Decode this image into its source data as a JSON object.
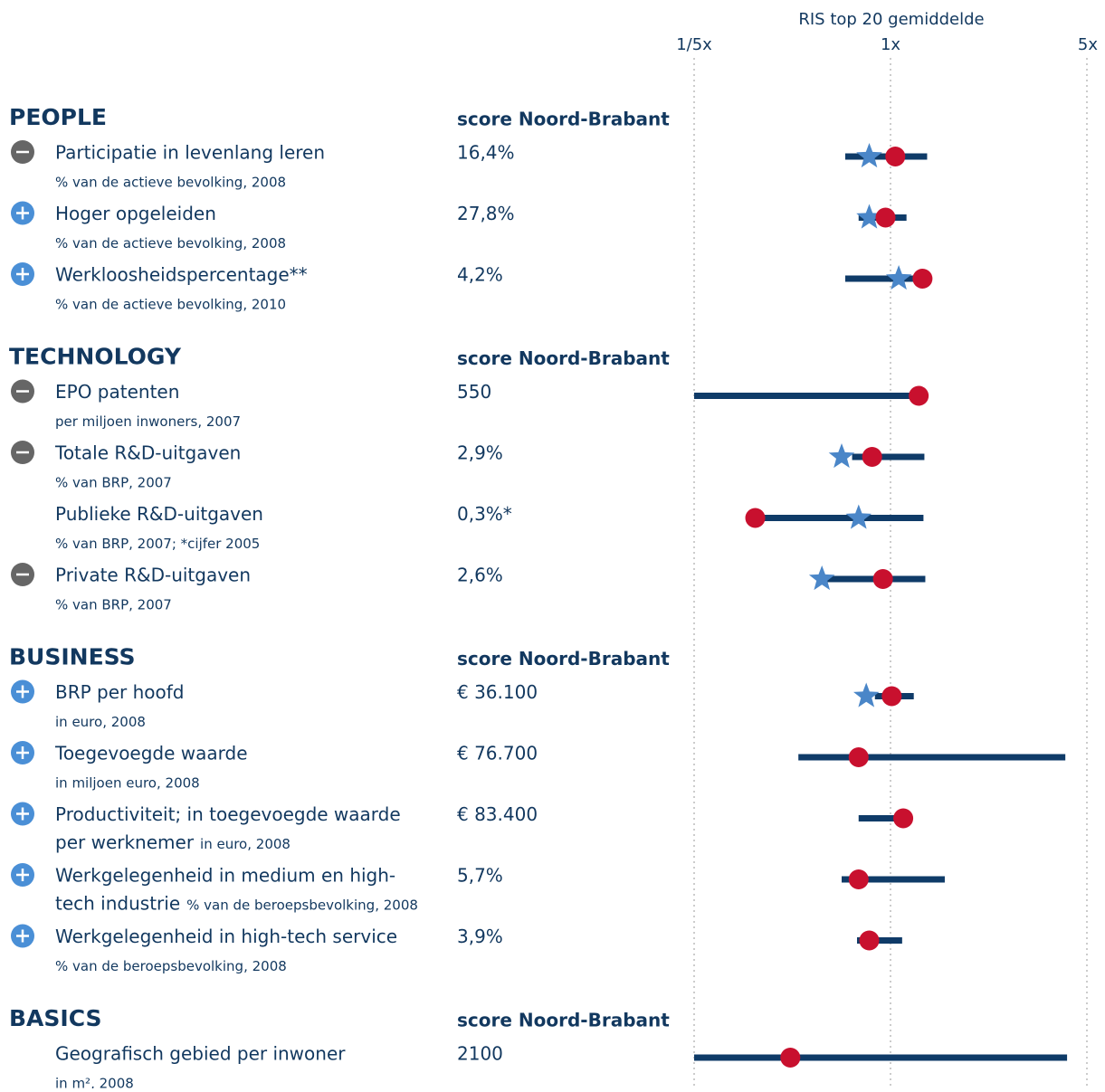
{
  "chart_data": {
    "type": "range-dot",
    "title": "RIS top 20 gemiddelde",
    "log": true,
    "xlim": [
      0.2,
      5
    ],
    "xticks": [
      {
        "value": 0.2,
        "label": "1/5x"
      },
      {
        "value": 1,
        "label": "1x"
      },
      {
        "value": 5,
        "label": "5x"
      }
    ],
    "colors": {
      "range": "#0f3b68",
      "noord_brabant": "#c8102e",
      "ris_top20": "#4a86c8",
      "plus": "#4a8fd6",
      "minus": "#666666"
    },
    "sections": [
      {
        "name": "PEOPLE",
        "score_header": "score Noord-Brabant",
        "rows": [
          {
            "label": [
              "Participatie in levenlang leren"
            ],
            "note": "% van de actieve bevolking, 2008",
            "score": "16,4%",
            "sign": "minus",
            "range": [
              0.69,
              1.35
            ],
            "ris_top20": 0.84,
            "noord_brabant": 1.04
          },
          {
            "label": [
              "Hoger opgeleiden"
            ],
            "note": "% van de actieve bevolking, 2008",
            "score": "27,8%",
            "sign": "plus",
            "range": [
              0.77,
              1.14
            ],
            "ris_top20": 0.84,
            "noord_brabant": 0.96
          },
          {
            "label": [
              "Werkloosheidspercentage**"
            ],
            "note": "% van de actieve bevolking, 2010",
            "score": "4,2%",
            "sign": "plus",
            "range": [
              0.69,
              1.3
            ],
            "ris_top20": 1.07,
            "noord_brabant": 1.3
          }
        ]
      },
      {
        "name": "TECHNOLOGY",
        "score_header": "score Noord-Brabant",
        "rows": [
          {
            "label": [
              "EPO patenten"
            ],
            "note": "per miljoen inwoners, 2007",
            "score": "550",
            "sign": "minus",
            "range": [
              0.2,
              1.26
            ],
            "ris_top20": null,
            "noord_brabant": 1.26
          },
          {
            "label": [
              "Totale R&D-uitgaven"
            ],
            "note": "% van BRP, 2007",
            "score": "2,9%",
            "sign": "minus",
            "range": [
              0.73,
              1.32
            ],
            "ris_top20": 0.67,
            "noord_brabant": 0.86
          },
          {
            "label": [
              "Publieke R&D-uitgaven"
            ],
            "note": "% van BRP, 2007; *cijfer 2005",
            "score": "0,3%*",
            "sign": null,
            "range": [
              0.33,
              1.31
            ],
            "ris_top20": 0.77,
            "noord_brabant": 0.33
          },
          {
            "label": [
              "Private R&D-uitgaven"
            ],
            "note": "% van BRP, 2007",
            "score": "2,6%",
            "sign": "minus",
            "range": [
              0.57,
              1.33
            ],
            "ris_top20": 0.57,
            "noord_brabant": 0.94
          }
        ]
      },
      {
        "name": "BUSINESS",
        "score_header": "score Noord-Brabant",
        "rows": [
          {
            "label": [
              "BRP per hoofd"
            ],
            "note": "in euro, 2008",
            "score": "€ 36.100",
            "sign": "plus",
            "range": [
              0.88,
              1.21
            ],
            "ris_top20": 0.82,
            "noord_brabant": 1.01
          },
          {
            "label": [
              "Toegevoegde waarde"
            ],
            "note": "in miljoen euro, 2008",
            "score": "€ 76.700",
            "sign": "plus",
            "range": [
              0.47,
              4.19
            ],
            "ris_top20": null,
            "noord_brabant": 0.77
          },
          {
            "label": [
              "Productiviteit; in toegevoegde waarde",
              "per werknemer"
            ],
            "note": "in euro, 2008",
            "score": "€ 83.400",
            "sign": "plus",
            "range": [
              0.77,
              1.11
            ],
            "ris_top20": null,
            "noord_brabant": 1.11
          },
          {
            "label": [
              "Werkgelegenheid in medium en high-",
              "tech industrie"
            ],
            "note": "% van de beroepsbevolking, 2008",
            "score": "5,7%",
            "sign": "plus",
            "range": [
              0.67,
              1.56
            ],
            "ris_top20": null,
            "noord_brabant": 0.77
          },
          {
            "label": [
              "Werkgelegenheid in high-tech service"
            ],
            "note": "% van de beroepsbevolking, 2008",
            "score": "3,9%",
            "sign": "plus",
            "range": [
              0.76,
              1.1
            ],
            "ris_top20": null,
            "noord_brabant": 0.84
          }
        ]
      },
      {
        "name": "BASICS",
        "score_header": "score Noord-Brabant",
        "rows": [
          {
            "label": [
              "Geografisch gebied per inwoner"
            ],
            "note": "in m², 2008",
            "score": "2100",
            "sign": null,
            "range": [
              0.2,
              4.25
            ],
            "ris_top20": null,
            "noord_brabant": 0.44
          }
        ]
      }
    ]
  }
}
